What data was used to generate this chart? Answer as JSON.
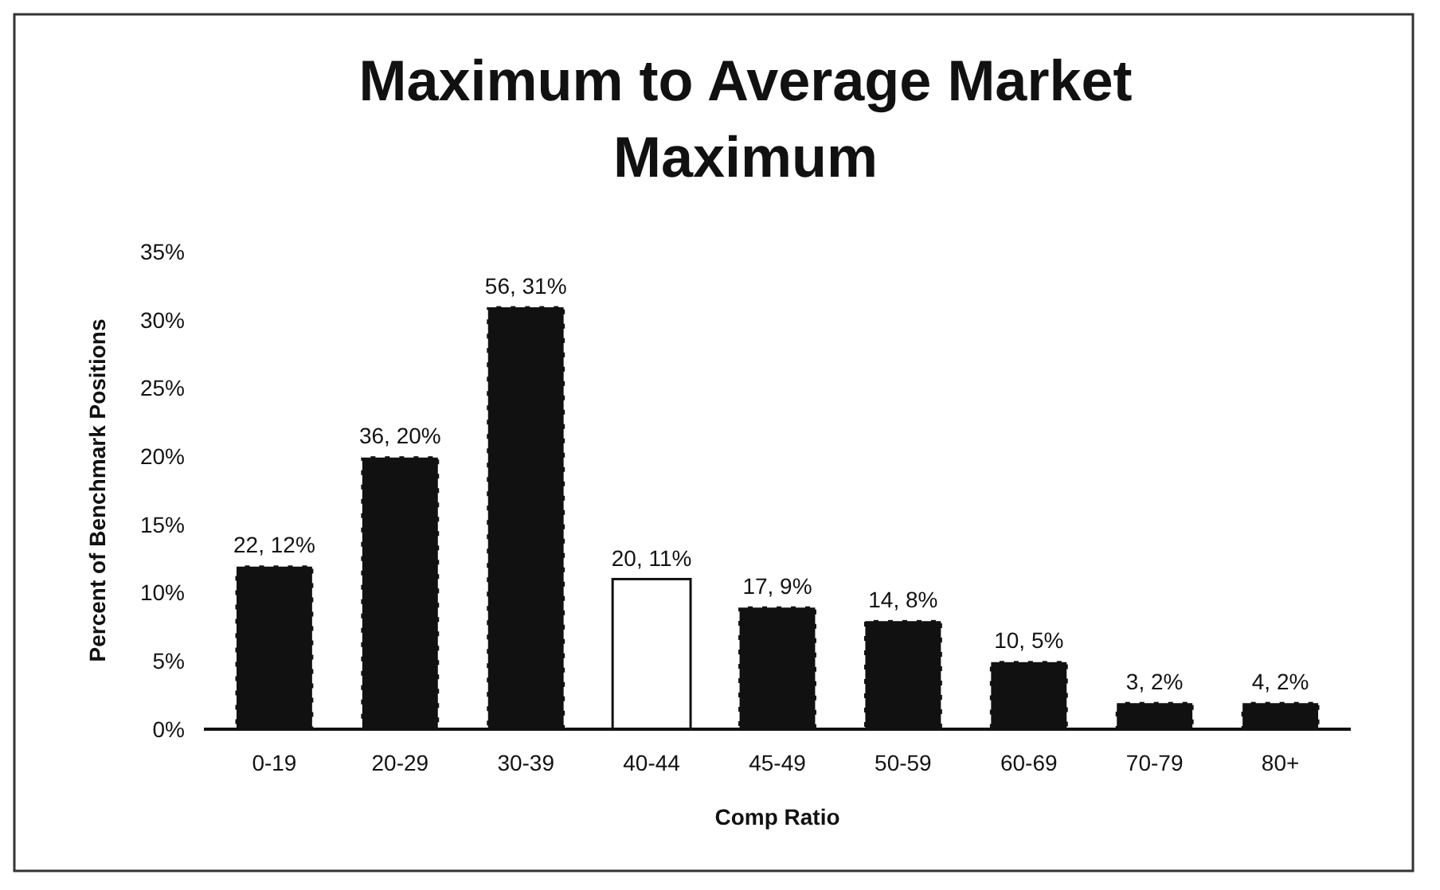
{
  "chart_data": {
    "type": "bar",
    "title": "Maximum to Average Market Maximum",
    "xlabel": "Comp Ratio",
    "ylabel": "Percent of Benchmark Positions",
    "categories": [
      "0-19",
      "20-29",
      "30-39",
      "40-44",
      "45-49",
      "50-59",
      "60-69",
      "70-79",
      "80+"
    ],
    "values": [
      12,
      20,
      31,
      11,
      9,
      8,
      5,
      2,
      2
    ],
    "colors": [
      "#111111",
      "#111111",
      "#111111",
      "#ffffff",
      "#111111",
      "#111111",
      "#111111",
      "#111111",
      "#111111"
    ],
    "value_labels": [
      "22, 12%",
      "36, 20%",
      "56, 31%",
      "20, 11%",
      "17, 9%",
      "14, 8%",
      "10, 5%",
      "3, 2%",
      "4, 2%"
    ],
    "ylim": [
      0,
      35
    ],
    "yticks": [
      {
        "value": 0,
        "label": "0%"
      },
      {
        "value": 5,
        "label": "5%"
      },
      {
        "value": 10,
        "label": "10%"
      },
      {
        "value": 15,
        "label": "15%"
      },
      {
        "value": 20,
        "label": "20%"
      },
      {
        "value": 25,
        "label": "25%"
      },
      {
        "value": 30,
        "label": "30%"
      },
      {
        "value": 35,
        "label": "35%"
      }
    ],
    "grid": false
  }
}
